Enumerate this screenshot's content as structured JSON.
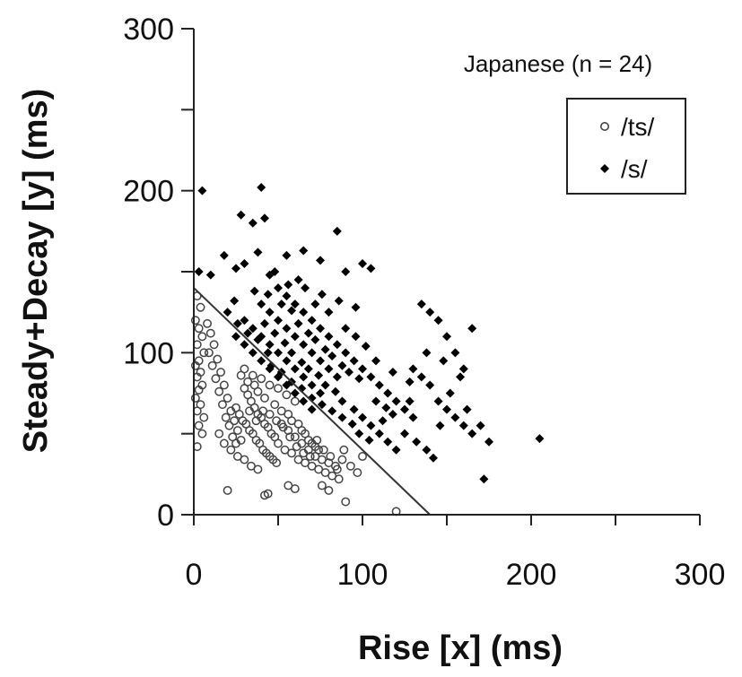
{
  "chart_data": {
    "type": "scatter",
    "title": "",
    "xlabel": "Rise [x] (ms)",
    "ylabel": "Steady+Decay [y] (ms)",
    "xlim": [
      0,
      300
    ],
    "ylim": [
      0,
      300
    ],
    "x_ticks": [
      0,
      100,
      200,
      300
    ],
    "y_ticks": [
      0,
      100,
      200,
      300
    ],
    "x_tick_labels": [
      "0",
      "100",
      "200",
      "300"
    ],
    "y_tick_labels": [
      "0",
      "100",
      "200",
      "300"
    ],
    "grid": false,
    "annotation": "Japanese (n = 24)",
    "legend": {
      "placement": "top-right",
      "entries": [
        "/ts/",
        "/s/"
      ]
    },
    "boundary_line": {
      "x": [
        0,
        140
      ],
      "y": [
        140,
        0
      ]
    },
    "series": [
      {
        "name": "/ts/",
        "marker": "open-circle",
        "color": "#444444",
        "points": [
          [
            2,
            135
          ],
          [
            4,
            128
          ],
          [
            1,
            120
          ],
          [
            3,
            115
          ],
          [
            5,
            110
          ],
          [
            2,
            105
          ],
          [
            6,
            100
          ],
          [
            3,
            95
          ],
          [
            1,
            92
          ],
          [
            4,
            88
          ],
          [
            2,
            85
          ],
          [
            5,
            80
          ],
          [
            3,
            77
          ],
          [
            1,
            72
          ],
          [
            4,
            68
          ],
          [
            2,
            64
          ],
          [
            6,
            60
          ],
          [
            3,
            55
          ],
          [
            5,
            50
          ],
          [
            2,
            42
          ],
          [
            8,
            118
          ],
          [
            10,
            112
          ],
          [
            12,
            105
          ],
          [
            9,
            100
          ],
          [
            14,
            96
          ],
          [
            11,
            92
          ],
          [
            16,
            88
          ],
          [
            13,
            84
          ],
          [
            18,
            80
          ],
          [
            15,
            76
          ],
          [
            20,
            72
          ],
          [
            17,
            68
          ],
          [
            22,
            64
          ],
          [
            19,
            60
          ],
          [
            24,
            58
          ],
          [
            21,
            55
          ],
          [
            26,
            52
          ],
          [
            23,
            48
          ],
          [
            28,
            46
          ],
          [
            25,
            44
          ],
          [
            30,
            78
          ],
          [
            32,
            74
          ],
          [
            34,
            70
          ],
          [
            36,
            66
          ],
          [
            38,
            62
          ],
          [
            40,
            60
          ],
          [
            42,
            56
          ],
          [
            44,
            54
          ],
          [
            46,
            50
          ],
          [
            48,
            48
          ],
          [
            31,
            56
          ],
          [
            33,
            52
          ],
          [
            35,
            50
          ],
          [
            37,
            46
          ],
          [
            39,
            44
          ],
          [
            41,
            40
          ],
          [
            43,
            38
          ],
          [
            45,
            36
          ],
          [
            47,
            34
          ],
          [
            49,
            32
          ],
          [
            30,
            90
          ],
          [
            35,
            86
          ],
          [
            40,
            84
          ],
          [
            45,
            80
          ],
          [
            50,
            78
          ],
          [
            55,
            74
          ],
          [
            60,
            70
          ],
          [
            38,
            76
          ],
          [
            42,
            72
          ],
          [
            48,
            68
          ],
          [
            52,
            64
          ],
          [
            56,
            62
          ],
          [
            58,
            58
          ],
          [
            62,
            56
          ],
          [
            64,
            52
          ],
          [
            66,
            50
          ],
          [
            68,
            46
          ],
          [
            70,
            44
          ],
          [
            72,
            42
          ],
          [
            74,
            40
          ],
          [
            50,
            44
          ],
          [
            54,
            40
          ],
          [
            58,
            38
          ],
          [
            62,
            34
          ],
          [
            66,
            32
          ],
          [
            70,
            30
          ],
          [
            74,
            28
          ],
          [
            78,
            26
          ],
          [
            82,
            24
          ],
          [
            86,
            22
          ],
          [
            52,
            56
          ],
          [
            56,
            52
          ],
          [
            60,
            48
          ],
          [
            64,
            44
          ],
          [
            68,
            40
          ],
          [
            72,
            36
          ],
          [
            76,
            34
          ],
          [
            80,
            32
          ],
          [
            84,
            30
          ],
          [
            88,
            34
          ],
          [
            25,
            66
          ],
          [
            27,
            62
          ],
          [
            29,
            58
          ],
          [
            33,
            64
          ],
          [
            37,
            58
          ],
          [
            41,
            64
          ],
          [
            45,
            62
          ],
          [
            49,
            58
          ],
          [
            53,
            54
          ],
          [
            57,
            48
          ],
          [
            61,
            42
          ],
          [
            65,
            38
          ],
          [
            69,
            36
          ],
          [
            73,
            46
          ],
          [
            77,
            40
          ],
          [
            81,
            36
          ],
          [
            85,
            28
          ],
          [
            89,
            40
          ],
          [
            93,
            30
          ],
          [
            97,
            26
          ],
          [
            20,
            15
          ],
          [
            42,
            12
          ],
          [
            44,
            13
          ],
          [
            56,
            18
          ],
          [
            60,
            16
          ],
          [
            76,
            18
          ],
          [
            80,
            15
          ],
          [
            90,
            8
          ],
          [
            120,
            2
          ],
          [
            100,
            36
          ],
          [
            15,
            50
          ],
          [
            18,
            44
          ],
          [
            22,
            40
          ],
          [
            26,
            36
          ],
          [
            30,
            34
          ],
          [
            34,
            30
          ],
          [
            38,
            28
          ],
          [
            28,
            86
          ],
          [
            32,
            82
          ],
          [
            36,
            80
          ]
        ]
      },
      {
        "name": "/s/",
        "marker": "filled-diamond",
        "color": "#000000",
        "points": [
          [
            5,
            200
          ],
          [
            40,
            202
          ],
          [
            28,
            185
          ],
          [
            35,
            180
          ],
          [
            42,
            183
          ],
          [
            18,
            160
          ],
          [
            25,
            152
          ],
          [
            30,
            155
          ],
          [
            38,
            162
          ],
          [
            45,
            148
          ],
          [
            3,
            150
          ],
          [
            10,
            148
          ],
          [
            55,
            160
          ],
          [
            65,
            163
          ],
          [
            85,
            175
          ],
          [
            90,
            150
          ],
          [
            100,
            155
          ],
          [
            105,
            152
          ],
          [
            75,
            157
          ],
          [
            48,
            150
          ],
          [
            50,
            140
          ],
          [
            55,
            135
          ],
          [
            60,
            130
          ],
          [
            65,
            125
          ],
          [
            70,
            120
          ],
          [
            75,
            115
          ],
          [
            80,
            110
          ],
          [
            85,
            105
          ],
          [
            90,
            100
          ],
          [
            95,
            95
          ],
          [
            40,
            130
          ],
          [
            45,
            125
          ],
          [
            50,
            120
          ],
          [
            55,
            115
          ],
          [
            60,
            110
          ],
          [
            65,
            105
          ],
          [
            70,
            100
          ],
          [
            75,
            95
          ],
          [
            80,
            90
          ],
          [
            85,
            85
          ],
          [
            30,
            120
          ],
          [
            35,
            115
          ],
          [
            40,
            110
          ],
          [
            45,
            105
          ],
          [
            50,
            100
          ],
          [
            55,
            95
          ],
          [
            60,
            90
          ],
          [
            65,
            85
          ],
          [
            70,
            80
          ],
          [
            75,
            75
          ],
          [
            25,
            110
          ],
          [
            30,
            105
          ],
          [
            35,
            100
          ],
          [
            40,
            95
          ],
          [
            45,
            90
          ],
          [
            50,
            85
          ],
          [
            55,
            80
          ],
          [
            60,
            75
          ],
          [
            65,
            70
          ],
          [
            70,
            65
          ],
          [
            52,
            130
          ],
          [
            58,
            126
          ],
          [
            62,
            118
          ],
          [
            68,
            112
          ],
          [
            72,
            108
          ],
          [
            78,
            102
          ],
          [
            82,
            98
          ],
          [
            88,
            92
          ],
          [
            92,
            88
          ],
          [
            98,
            84
          ],
          [
            42,
            118
          ],
          [
            48,
            112
          ],
          [
            54,
            106
          ],
          [
            58,
            100
          ],
          [
            64,
            94
          ],
          [
            68,
            90
          ],
          [
            74,
            86
          ],
          [
            78,
            80
          ],
          [
            84,
            76
          ],
          [
            88,
            70
          ],
          [
            36,
            138
          ],
          [
            44,
            136
          ],
          [
            56,
            142
          ],
          [
            66,
            140
          ],
          [
            76,
            136
          ],
          [
            86,
            132
          ],
          [
            96,
            128
          ],
          [
            80,
            125
          ],
          [
            72,
            130
          ],
          [
            62,
            145
          ],
          [
            100,
            90
          ],
          [
            105,
            85
          ],
          [
            110,
            80
          ],
          [
            115,
            75
          ],
          [
            120,
            70
          ],
          [
            125,
            65
          ],
          [
            130,
            60
          ],
          [
            108,
            95
          ],
          [
            118,
            88
          ],
          [
            128,
            82
          ],
          [
            95,
            65
          ],
          [
            100,
            60
          ],
          [
            105,
            55
          ],
          [
            110,
            50
          ],
          [
            115,
            45
          ],
          [
            120,
            40
          ],
          [
            98,
            50
          ],
          [
            104,
            46
          ],
          [
            112,
            58
          ],
          [
            118,
            62
          ],
          [
            135,
            130
          ],
          [
            140,
            125
          ],
          [
            145,
            120
          ],
          [
            150,
            110
          ],
          [
            155,
            100
          ],
          [
            160,
            90
          ],
          [
            138,
            100
          ],
          [
            148,
            95
          ],
          [
            158,
            85
          ],
          [
            165,
            115
          ],
          [
            130,
            90
          ],
          [
            135,
            85
          ],
          [
            140,
            80
          ],
          [
            145,
            70
          ],
          [
            150,
            65
          ],
          [
            155,
            60
          ],
          [
            160,
            55
          ],
          [
            165,
            50
          ],
          [
            170,
            55
          ],
          [
            175,
            45
          ],
          [
            125,
            50
          ],
          [
            132,
            45
          ],
          [
            138,
            40
          ],
          [
            142,
            35
          ],
          [
            128,
            70
          ],
          [
            146,
            55
          ],
          [
            152,
            75
          ],
          [
            162,
            65
          ],
          [
            172,
            22
          ],
          [
            205,
            47
          ],
          [
            20,
            125
          ],
          [
            26,
            118
          ],
          [
            32,
            112
          ],
          [
            38,
            108
          ],
          [
            44,
            100
          ],
          [
            24,
            132
          ],
          [
            46,
            92
          ],
          [
            52,
            88
          ],
          [
            58,
            82
          ],
          [
            64,
            78
          ],
          [
            70,
            72
          ],
          [
            76,
            68
          ],
          [
            82,
            64
          ],
          [
            88,
            60
          ],
          [
            94,
            56
          ],
          [
            90,
            115
          ],
          [
            96,
            110
          ],
          [
            102,
            104
          ],
          [
            108,
            70
          ],
          [
            114,
            66
          ]
        ]
      }
    ]
  }
}
